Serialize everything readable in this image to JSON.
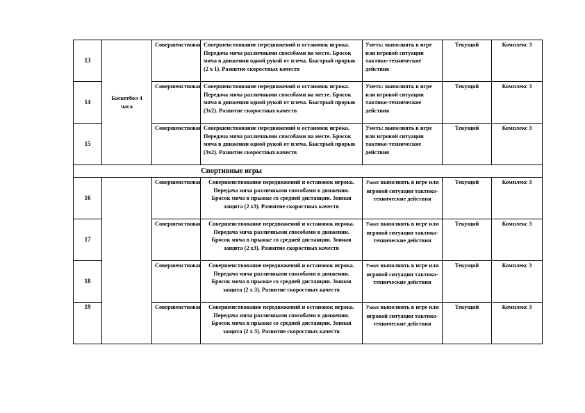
{
  "section_title": "Спортивные игры",
  "rows_top": [
    {
      "num": "13",
      "section": "Баскетбол 4 часа",
      "type": "Совершенствования",
      "content": "Совершенствование передвижений и остановок игрока. Передача мяча различными способами на месте. Бросок мяча в движении одной рукой от плеча. Быстрый прорыв (2 х 1). Развитие скоростных качеств",
      "skills": "Уметь: выполнять в игре или игровой ситуации тактико-технические действия",
      "control": "Текущий",
      "homework": "Комплекс 3"
    },
    {
      "num": "14",
      "section": "",
      "type": "Совершенствования",
      "content": "Совершенствование передвижений и остановок игрока. Передача мяча различными способами на месте. Бросок мяча в движении одной рукой от плеча. Быстрый прорыв (3х2). Развитие скоростных качеств",
      "skills": "Уметь: выполнять в игре или игровой ситуации тактико-технические действия",
      "control": "Текущий",
      "homework": "Комплекс 3"
    },
    {
      "num": "15",
      "section": "",
      "type": "Совершенствования",
      "content": "Совершенствование передвижений и остановок игрока. Передача мяча различными способами на месте. Бросок мяча в движении одной рукой от плеча. Быстрый прорыв (3х2). Развитие скоростных качеств",
      "skills": "Уметь: выполнять в игре или игровой ситуации тактико-технические действия",
      "control": "Текущий",
      "homework": "Комплекс 3"
    }
  ],
  "rows_bottom": [
    {
      "num": "16",
      "type": "Совершенствования",
      "content": "Совершенствование передвижений и остановок игрока. Передача мяча различными способами в движении. Бросок мяча в прыжке со средней дистанции. Зонная защита (2 х3). Развитие скоростных качеств",
      "skills_lead": "Умеет",
      "skills": " выполнять в игре или игровой ситуации тактико-технические действия",
      "control": "Текущий",
      "homework": "Комплекс 3"
    },
    {
      "num": "17",
      "type": "Совершенствования",
      "content": "Совершенствование передвижений и остановок игрока. Передача мяча различными способами в движении. Бросок мяча в прыжке со средней дистанции. Зонная защита (2 х3). Развитие скоростных качеств",
      "skills_lead": "Умеет",
      "skills": " выполнять в игре или игровой ситуации тактико-технические действия",
      "control": "Текущий",
      "homework": "Комплекс 3"
    },
    {
      "num": "18",
      "type": "Совершенствования",
      "content": "Совершенствование передвижений и остановок игрока. Передача мяча различными способами в движении. Бросок мяча в прыжке со средней дистанции. Зонная защита (2 х 3). Развитие скоростных качеств",
      "skills_lead": "Умеет",
      "skills": " выполнять в игре или игровой ситуации тактико-технические действия",
      "control": "Текущий",
      "homework": "Комплекс 3"
    },
    {
      "num": "19",
      "type": "Совершенствования",
      "content": "Совершенствование передвижений и остановок игрока. Передача мяча различными способами в движении. Бросок мяча в прыжке со средней дистанции. Зонная защита (2 х 3). Развитие скоростных качеств",
      "skills_lead": "Умеет",
      "skills": " выполнять в игре или игровой ситуации тактико-технические действия",
      "control": "Текущий",
      "homework": "Комплекс 3"
    }
  ]
}
